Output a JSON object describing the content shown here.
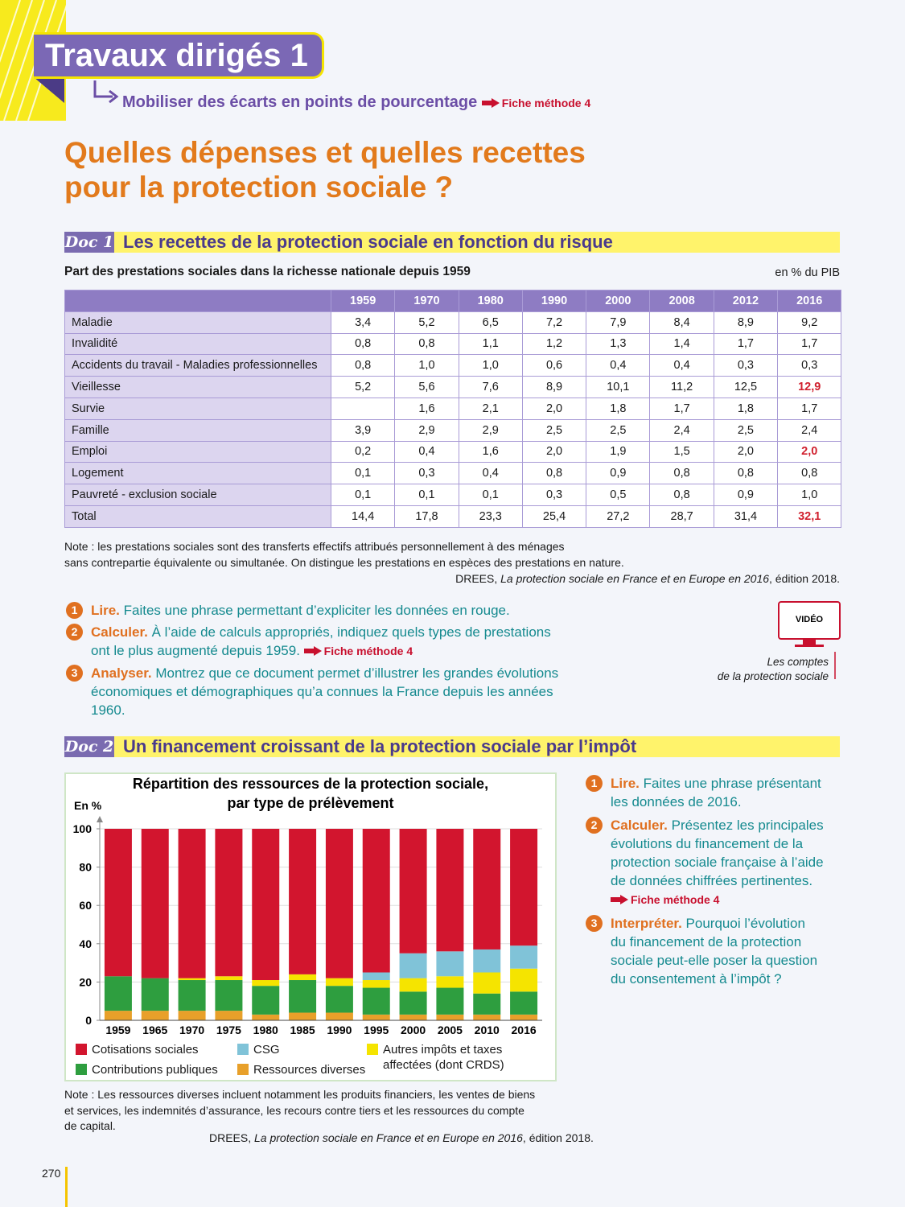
{
  "header": {
    "title": "Travaux dirigés 1",
    "subtitle": "Mobiliser des écarts en points de pourcentage",
    "method_link": "Fiche méthode 4"
  },
  "heading": [
    "Quelles dépenses et quelles recettes",
    "pour la protection sociale ?"
  ],
  "doc1": {
    "label": "Doc 1",
    "title": "Les recettes de la protection sociale en fonction du risque",
    "table_caption": "Part des prestations sociales dans la richesse nationale depuis 1959",
    "unit": "en % du PIB",
    "table": {
      "columns": [
        "1959",
        "1970",
        "1980",
        "1990",
        "2000",
        "2008",
        "2012",
        "2016"
      ],
      "rows": [
        {
          "label": "Maladie",
          "cells": [
            "3,4",
            "5,2",
            "6,5",
            "7,2",
            "7,9",
            "8,4",
            "8,9",
            "9,2"
          ]
        },
        {
          "label": "Invalidité",
          "cells": [
            "0,8",
            "0,8",
            "1,1",
            "1,2",
            "1,3",
            "1,4",
            "1,7",
            "1,7"
          ]
        },
        {
          "label": "Accidents du travail - Maladies professionnelles",
          "cells": [
            "0,8",
            "1,0",
            "1,0",
            "0,6",
            "0,4",
            "0,4",
            "0,3",
            "0,3"
          ]
        },
        {
          "label": "Vieillesse",
          "cells": [
            "5,2",
            "5,6",
            "7,6",
            "8,9",
            "10,1",
            "11,2",
            "12,5",
            "12,9"
          ]
        },
        {
          "label": "Survie",
          "cells": [
            null,
            "1,6",
            "2,1",
            "2,0",
            "1,8",
            "1,7",
            "1,8",
            "1,7"
          ]
        },
        {
          "label": "Famille",
          "cells": [
            "3,9",
            "2,9",
            "2,9",
            "2,5",
            "2,5",
            "2,4",
            "2,5",
            "2,4"
          ]
        },
        {
          "label": "Emploi",
          "cells": [
            "0,2",
            "0,4",
            "1,6",
            "2,0",
            "1,9",
            "1,5",
            "2,0",
            "2,0"
          ]
        },
        {
          "label": "Logement",
          "cells": [
            "0,1",
            "0,3",
            "0,4",
            "0,8",
            "0,9",
            "0,8",
            "0,8",
            "0,8"
          ]
        },
        {
          "label": "Pauvreté - exclusion sociale",
          "cells": [
            "0,1",
            "0,1",
            "0,1",
            "0,3",
            "0,5",
            "0,8",
            "0,9",
            "1,0"
          ]
        },
        {
          "label": "Total",
          "cells": [
            "14,4",
            "17,8",
            "23,3",
            "25,4",
            "27,2",
            "28,7",
            "31,4",
            "32,1"
          ]
        }
      ],
      "highlighted_cells": [
        [
          3,
          7
        ],
        [
          6,
          7
        ],
        [
          9,
          7
        ]
      ],
      "highlight_color": "#d0202e"
    },
    "note": [
      "Note : les prestations sociales sont des transferts effectifs attribués personnellement à des ménages",
      "sans contrepartie équivalente ou simultanée. On distingue les prestations en espèces des prestations en nature."
    ],
    "source": {
      "author": "DREES,",
      "title": "La protection sociale en France et en Europe en 2016",
      "edition": ", édition 2018."
    },
    "questions": [
      {
        "number": "1",
        "verb": "Lire.",
        "text": "Faites une phrase permettant d’expliciter les données en rouge."
      },
      {
        "number": "2",
        "verb": "Calculer.",
        "text": "À l’aide de calculs appropriés, indiquez quels types de prestations ont le plus augmenté depuis 1959.",
        "link": "Fiche méthode 4"
      },
      {
        "number": "3",
        "verb": "Analyser.",
        "text": "Montrez que ce document permet d’illustrer les grandes évolutions économiques et démographiques qu’a connues la France depuis les années 1960."
      }
    ],
    "video": {
      "label": "VIDÉO",
      "caption": [
        "Les comptes",
        "de la protection sociale"
      ]
    }
  },
  "doc2": {
    "label": "Doc 2",
    "title": "Un financement croissant de la protection sociale par l’impôt",
    "note": [
      "Note : Les ressources diverses incluent notamment les produits financiers, les ventes de biens",
      "et services, les indemnités d’assurance, les recours contre tiers et les ressources du compte",
      "de capital."
    ],
    "source": {
      "author": "DREES,",
      "title": "La protection sociale en France et en Europe en 2016",
      "edition": ", édition 2018."
    },
    "questions": [
      {
        "number": "1",
        "verb": "Lire.",
        "text": "Faites une phrase présentant les données de 2016."
      },
      {
        "number": "2",
        "verb": "Calculer.",
        "text": "Présentez les principales évolutions du financement de la protection sociale française à l’aide de données chiffrées pertinentes.",
        "link": "Fiche méthode 4"
      },
      {
        "number": "3",
        "verb": "Interpréter.",
        "text": "Pourquoi l’évolution du financement de la protection sociale peut-elle poser la question du consentement à l’impôt ?"
      }
    ]
  },
  "chart_data": {
    "type": "stacked_bar",
    "title": [
      "Répartition des ressources de la protection sociale,",
      "par type de prélèvement"
    ],
    "y_label": "En %",
    "categories": [
      "1959",
      "1965",
      "1970",
      "1975",
      "1980",
      "1985",
      "1990",
      "1995",
      "2000",
      "2005",
      "2010",
      "2016"
    ],
    "series": [
      {
        "name": "Ressources diverses",
        "color": "#e8a02a",
        "values": [
          5,
          5,
          5,
          5,
          3,
          4,
          4,
          3,
          3,
          3,
          3,
          3
        ]
      },
      {
        "name": "Contributions publiques",
        "color": "#2e9e3f",
        "values": [
          18,
          17,
          16,
          16,
          15,
          17,
          14,
          14,
          12,
          14,
          11,
          12
        ]
      },
      {
        "name": "Autres impôts et taxes affectées (dont CRDS)",
        "color": "#f5e400",
        "values": [
          0,
          0,
          1,
          2,
          3,
          3,
          4,
          4,
          7,
          6,
          11,
          12
        ]
      },
      {
        "name": "CSG",
        "color": "#80c3d8",
        "values": [
          0,
          0,
          0,
          0,
          0,
          0,
          0,
          4,
          13,
          13,
          12,
          12
        ]
      },
      {
        "name": "Cotisations sociales",
        "color": "#d2152e",
        "values": [
          77,
          78,
          78,
          77,
          79,
          76,
          78,
          75,
          65,
          64,
          63,
          61
        ]
      }
    ],
    "ylim": [
      0,
      100
    ],
    "yticks": [
      0,
      20,
      40,
      60,
      80,
      100
    ],
    "grid": true
  },
  "footer": {
    "page_number": "270"
  }
}
